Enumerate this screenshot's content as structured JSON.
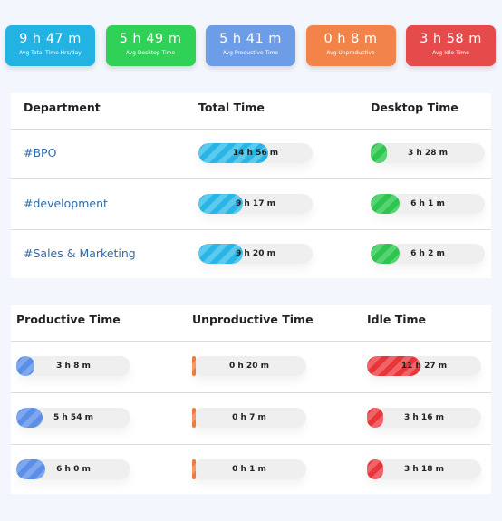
{
  "summary_cards": [
    {
      "value": "9 h 47 m",
      "label": "Avg Total Time Hrs/day"
    },
    {
      "value": "5 h 49 m",
      "label": "Avg Desktop Time"
    },
    {
      "value": "5 h 41 m",
      "label": "Avg Productive Time"
    },
    {
      "value": "0 h 8 m",
      "label": "Avg Unproductive"
    },
    {
      "value": "3 h 58 m",
      "label": "Avg Idle Time"
    }
  ],
  "department_table": {
    "headers": [
      "Department",
      "Total Time",
      "Desktop Time"
    ],
    "rows": [
      {
        "department": "#BPO",
        "cells": [
          {
            "text": "14 h 56 m",
            "fill": 61
          },
          {
            "text": "3 h 28 m",
            "fill": 14
          }
        ]
      },
      {
        "department": "#development",
        "cells": [
          {
            "text": "9 h 17 m",
            "fill": 39
          },
          {
            "text": "6 h 1 m",
            "fill": 25
          }
        ]
      },
      {
        "department": "#Sales & Marketing",
        "cells": [
          {
            "text": "9 h 20 m",
            "fill": 39
          },
          {
            "text": "6 h 2 m",
            "fill": 25
          }
        ]
      }
    ]
  },
  "time_table": {
    "headers": [
      "Productive Time",
      "Unproductive Time",
      "Idle Time"
    ],
    "rows": [
      {
        "cells": [
          {
            "text": "3 h 8 m",
            "fill": 16
          },
          {
            "text": "0 h 20 m",
            "fill": 2
          },
          {
            "text": "11 h 27 m",
            "fill": 47
          }
        ]
      },
      {
        "cells": [
          {
            "text": "5 h 54 m",
            "fill": 23
          },
          {
            "text": "0 h 7 m",
            "fill": 1
          },
          {
            "text": "3 h 16 m",
            "fill": 14
          }
        ]
      },
      {
        "cells": [
          {
            "text": "6 h 0 m",
            "fill": 25
          },
          {
            "text": "0 h 1 m",
            "fill": 1
          },
          {
            "text": "3 h 18 m",
            "fill": 14
          }
        ]
      }
    ]
  }
}
